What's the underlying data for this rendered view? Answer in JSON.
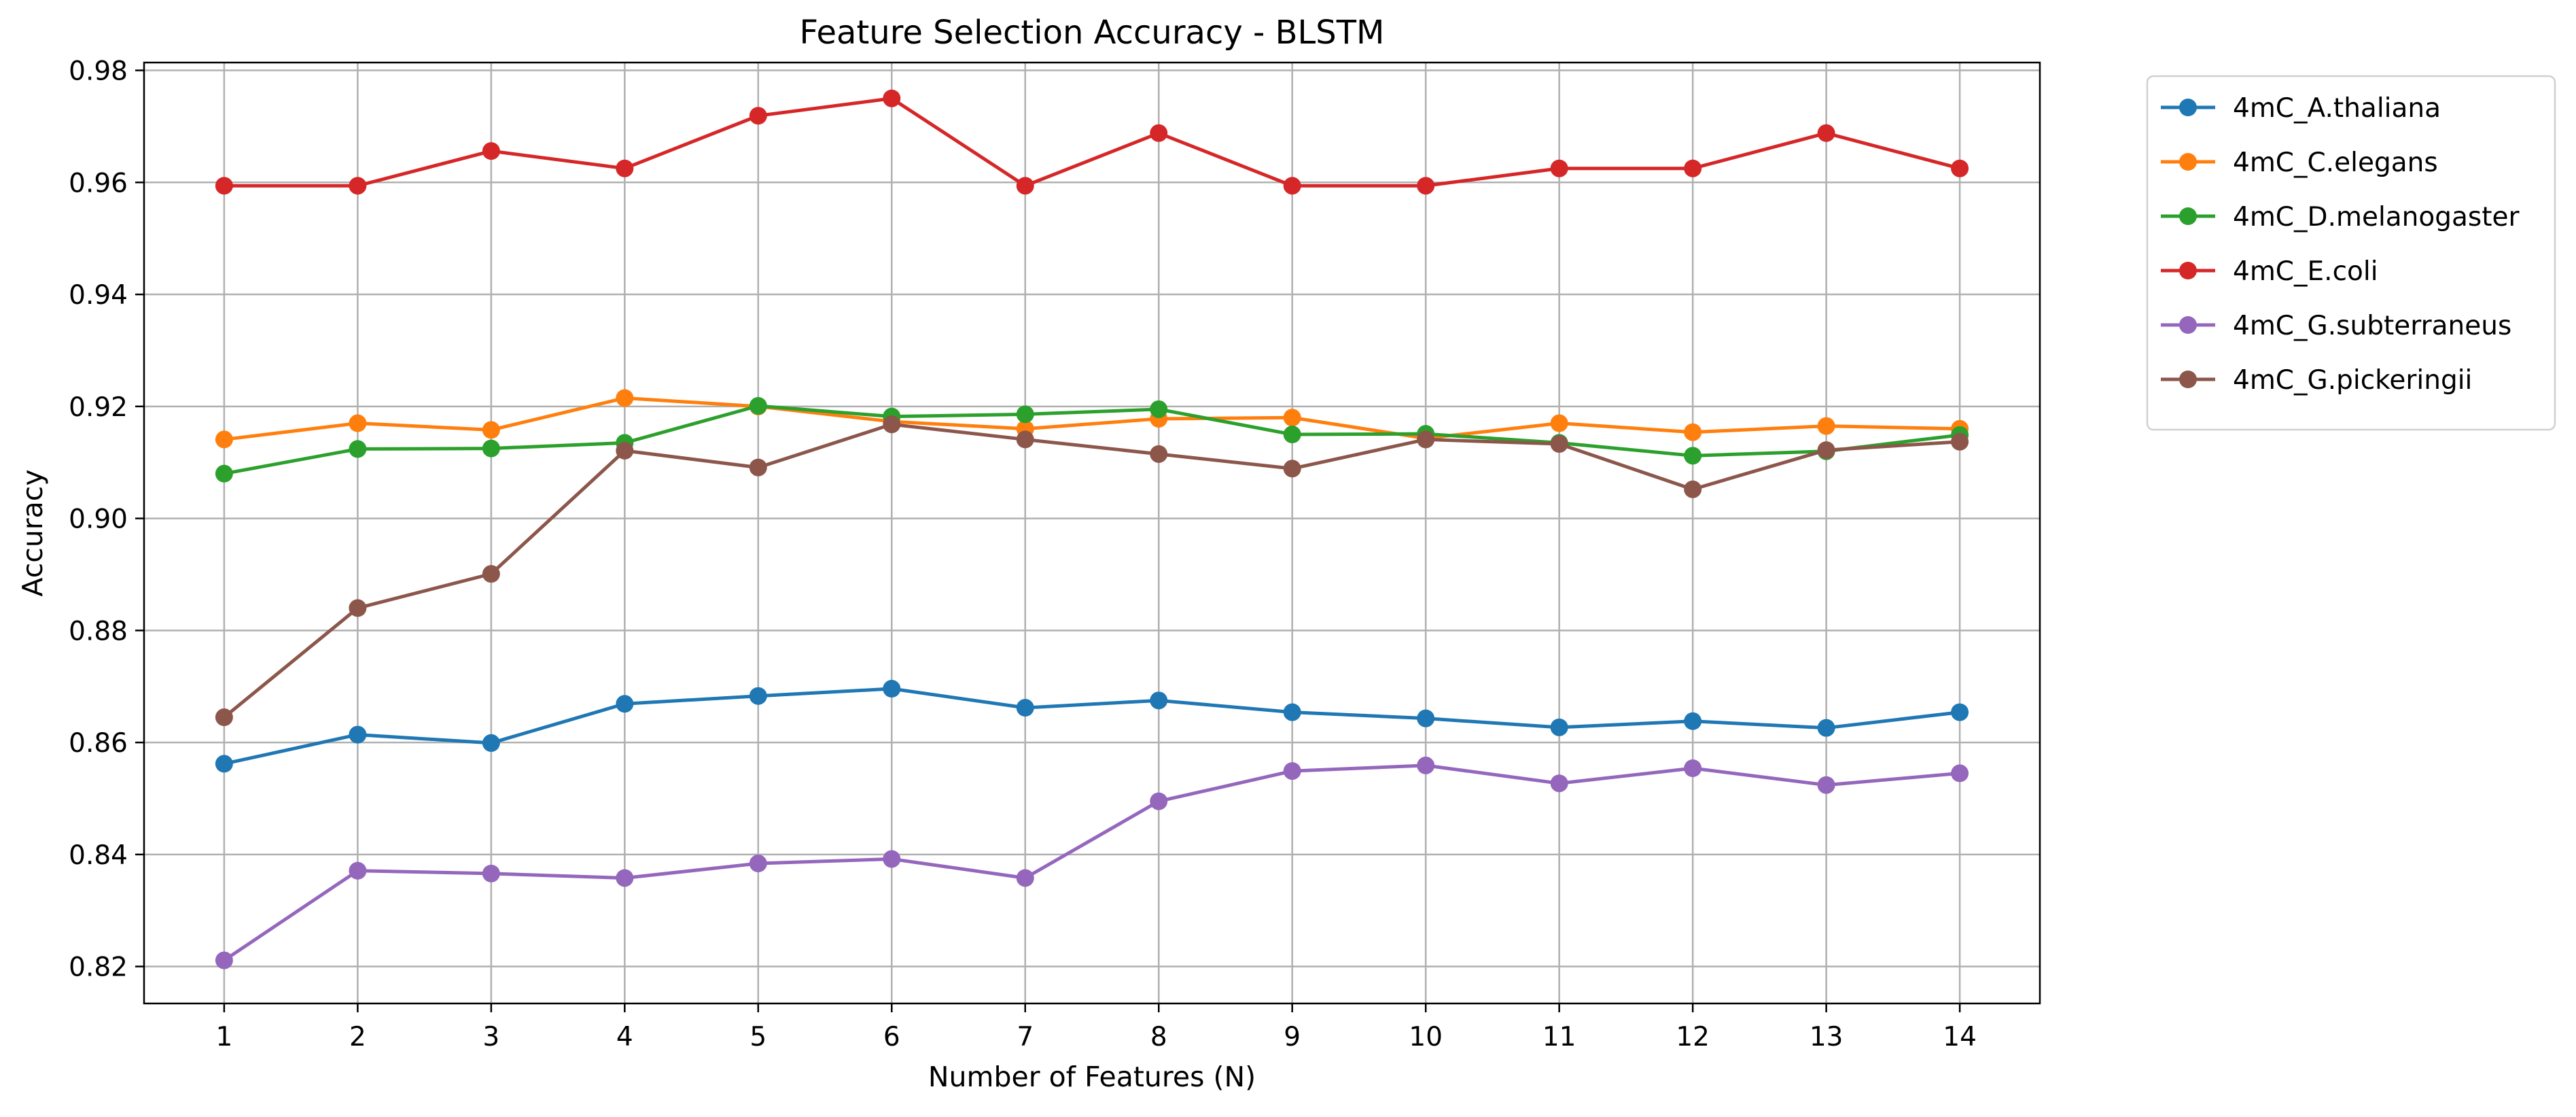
{
  "chart_data": {
    "type": "line",
    "title": "Feature Selection Accuracy - BLSTM",
    "xlabel": "Number of Features (N)",
    "ylabel": "Accuracy",
    "x": [
      1,
      2,
      3,
      4,
      5,
      6,
      7,
      8,
      9,
      10,
      11,
      12,
      13,
      14
    ],
    "xlim": [
      0.4,
      14.6
    ],
    "ylim": [
      0.8134,
      0.9814
    ],
    "yticks": [
      "0.82",
      "0.84",
      "0.86",
      "0.88",
      "0.90",
      "0.92",
      "0.94",
      "0.96",
      "0.98"
    ],
    "ytick_values": [
      0.82,
      0.84,
      0.86,
      0.88,
      0.9,
      0.92,
      0.94,
      0.96,
      0.98
    ],
    "grid": true,
    "legend_position": "outside-top-right",
    "markers": "circle",
    "series": [
      {
        "name": "4mC_A.thaliana",
        "color": "#1f77b4",
        "values": [
          0.8562,
          0.8614,
          0.8599,
          0.8669,
          0.8683,
          0.8696,
          0.8662,
          0.8675,
          0.8654,
          0.8643,
          0.8627,
          0.8638,
          0.8626,
          0.8654
        ]
      },
      {
        "name": "4mC_C.elegans",
        "color": "#ff7f0e",
        "values": [
          0.9141,
          0.917,
          0.9158,
          0.9215,
          0.92,
          0.9173,
          0.916,
          0.9178,
          0.918,
          0.9143,
          0.917,
          0.9154,
          0.9165,
          0.916
        ]
      },
      {
        "name": "4mC_D.melanogaster",
        "color": "#2ca02c",
        "values": [
          0.908,
          0.9124,
          0.9125,
          0.9135,
          0.9201,
          0.9182,
          0.9186,
          0.9195,
          0.915,
          0.9151,
          0.9135,
          0.9112,
          0.912,
          0.9149
        ]
      },
      {
        "name": "4mC_E.coli",
        "color": "#d62728",
        "values": [
          0.9594,
          0.9594,
          0.9656,
          0.9625,
          0.9719,
          0.975,
          0.9594,
          0.9688,
          0.9594,
          0.9594,
          0.9625,
          0.9625,
          0.9688,
          0.9625
        ]
      },
      {
        "name": "4mC_G.subterraneus",
        "color": "#9467bd",
        "values": [
          0.8211,
          0.8371,
          0.8366,
          0.8358,
          0.8384,
          0.8392,
          0.8358,
          0.8495,
          0.8549,
          0.8559,
          0.8527,
          0.8554,
          0.8524,
          0.8545
        ]
      },
      {
        "name": "4mC_G.pickeringii",
        "color": "#8c564b",
        "values": [
          0.8645,
          0.884,
          0.8901,
          0.9121,
          0.9091,
          0.9168,
          0.9141,
          0.9115,
          0.9089,
          0.9141,
          0.9133,
          0.9052,
          0.9122,
          0.9137
        ]
      }
    ]
  }
}
